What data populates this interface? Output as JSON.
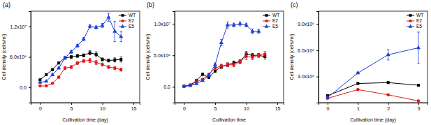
{
  "chart_data": [
    {
      "type": "line",
      "title": "(a)",
      "x_label": "Cultivation time (day)",
      "y_label": "Cell density (cells/ml)",
      "x": [
        0,
        1,
        2,
        3,
        4,
        5,
        6,
        7,
        8,
        9,
        10,
        11,
        12,
        13
      ],
      "xlim": [
        -1.5,
        16
      ],
      "xticks": [
        0,
        5,
        10,
        15
      ],
      "ylim": [
        -3000000,
        15000000
      ],
      "yticks": [
        {
          "value": 0,
          "label": "0.0"
        },
        {
          "value": 6000000,
          "label": "6.0x10⁶"
        },
        {
          "value": 12000000,
          "label": "1.2x10⁷"
        }
      ],
      "legend": "upper right",
      "series": [
        {
          "name": "WT",
          "color": "#000000",
          "marker": "square",
          "values": [
            1500000,
            2500000,
            3500000,
            4800000,
            5800000,
            6000000,
            6200000,
            6300000,
            6800000,
            6500000,
            5500000,
            5300000,
            5400000,
            5500000
          ],
          "errors": [
            100000,
            100000,
            200000,
            200000,
            200000,
            300000,
            300000,
            300000,
            400000,
            500000,
            300000,
            300000,
            400000,
            500000
          ]
        },
        {
          "name": "E2",
          "color": "#e3161e",
          "marker": "circle",
          "values": [
            300000,
            300000,
            800000,
            2000000,
            3800000,
            4000000,
            4800000,
            5200000,
            5300000,
            4900000,
            4500000,
            4000000,
            3800000,
            3500000
          ],
          "errors": [
            50000,
            50000,
            100000,
            200000,
            300000,
            300000,
            300000,
            300000,
            400000,
            400000,
            300000,
            300000,
            300000,
            300000
          ]
        },
        {
          "name": "E5",
          "color": "#1c3fd6",
          "marker": "triangle",
          "values": [
            1000000,
            1200000,
            2500000,
            3800000,
            5800000,
            7000000,
            8200000,
            9500000,
            12000000,
            11800000,
            12200000,
            13800000,
            11000000,
            10000000
          ],
          "errors": [
            100000,
            100000,
            200000,
            200000,
            300000,
            300000,
            300000,
            300000,
            300000,
            300000,
            400000,
            800000,
            2000000,
            1000000
          ]
        }
      ]
    },
    {
      "type": "line",
      "title": "(b)",
      "x_label": "Cultivation time",
      "y_label": "Cell density (cells/ml)",
      "x": [
        0,
        1,
        2,
        3,
        4,
        5,
        6,
        7,
        8,
        9,
        10,
        11,
        12,
        13
      ],
      "xlim": [
        -1.5,
        16
      ],
      "xticks": [
        0,
        5,
        10,
        15
      ],
      "ylim": [
        -2500000,
        12000000
      ],
      "yticks": [
        {
          "value": 0,
          "label": "0.0"
        },
        {
          "value": 5000000,
          "label": "5.0x10⁶"
        },
        {
          "value": 10000000,
          "label": "1.0x10⁷"
        }
      ],
      "legend": "upper right",
      "series": [
        {
          "name": "WT",
          "color": "#000000",
          "marker": "square",
          "values": [
            100000,
            300000,
            1000000,
            2000000,
            1500000,
            2500000,
            3200000,
            3500000,
            3800000,
            4000000,
            5200000,
            5000000,
            5000000,
            4800000
          ],
          "errors": [
            50000,
            50000,
            100000,
            200000,
            200000,
            200000,
            300000,
            300000,
            300000,
            300000,
            400000,
            300000,
            300000,
            400000
          ]
        },
        {
          "name": "E2",
          "color": "#e3161e",
          "marker": "circle",
          "values": [
            100000,
            200000,
            800000,
            1200000,
            2000000,
            3000000,
            3300000,
            3500000,
            3500000,
            4000000,
            4800000,
            4700000,
            5000000,
            5200000
          ],
          "errors": [
            50000,
            50000,
            100000,
            100000,
            200000,
            200000,
            300000,
            300000,
            300000,
            300000,
            500000,
            400000,
            300000,
            400000
          ]
        },
        {
          "name": "E5",
          "color": "#1c3fd6",
          "marker": "triangle",
          "values": [
            100000,
            200000,
            500000,
            1000000,
            1800000,
            3500000,
            7000000,
            9800000,
            9800000,
            10000000,
            9800000,
            8800000,
            8800000,
            null
          ],
          "errors": [
            50000,
            50000,
            100000,
            100000,
            200000,
            300000,
            500000,
            500000,
            300000,
            300000,
            300000,
            400000,
            300000,
            null
          ]
        }
      ]
    },
    {
      "type": "line",
      "title": "(c)",
      "x_label": "Cultivation time (day)",
      "y_label": "Cell density (cells/ml)",
      "x": [
        0,
        1,
        2,
        3
      ],
      "xlim": [
        -0.3,
        3.3
      ],
      "xticks": [
        0,
        1,
        2,
        3
      ],
      "ylim": [
        0,
        10500000
      ],
      "yticks": [
        {
          "value": 3000000,
          "label": "3.0x10⁶"
        },
        {
          "value": 6000000,
          "label": "6.0x10⁶"
        },
        {
          "value": 9000000,
          "label": "9.0x10⁶"
        }
      ],
      "legend": "upper right",
      "series": [
        {
          "name": "WT",
          "color": "#000000",
          "marker": "square",
          "values": [
            800000,
            2200000,
            2300000,
            2000000
          ],
          "errors": [
            50000,
            100000,
            100000,
            100000
          ]
        },
        {
          "name": "E2",
          "color": "#e3161e",
          "marker": "circle",
          "values": [
            500000,
            1500000,
            900000,
            200000
          ],
          "errors": [
            50000,
            100000,
            100000,
            50000
          ]
        },
        {
          "name": "E5",
          "color": "#1c3fd6",
          "marker": "triangle",
          "values": [
            600000,
            3400000,
            5500000,
            6300000
          ],
          "errors": [
            50000,
            100000,
            600000,
            1800000
          ]
        }
      ]
    }
  ]
}
